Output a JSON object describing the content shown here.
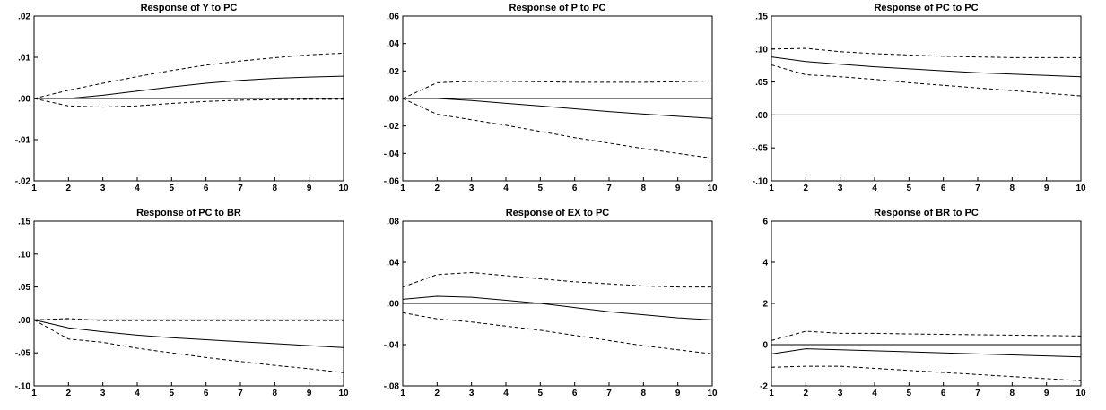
{
  "chart_data": [
    {
      "type": "line",
      "title": "Response of Y to PC",
      "x": [
        1,
        2,
        3,
        4,
        5,
        6,
        7,
        8,
        9,
        10
      ],
      "xticks": [
        "1",
        "2",
        "3",
        "4",
        "5",
        "6",
        "7",
        "8",
        "9",
        "10"
      ],
      "ylim": [
        -0.02,
        0.02
      ],
      "yticks": [
        ".02",
        ".01",
        ".00",
        "-.01",
        "-.02"
      ],
      "ytick_values": [
        0.02,
        0.01,
        0.0,
        -0.01,
        -0.02
      ],
      "zero_line": true,
      "series": [
        {
          "style": "solid",
          "values": [
            0.0,
            0.0,
            0.0008,
            0.0018,
            0.0028,
            0.0037,
            0.0044,
            0.0049,
            0.0052,
            0.0054
          ]
        },
        {
          "style": "dashed",
          "values": [
            0.0,
            0.002,
            0.0037,
            0.0053,
            0.0068,
            0.0081,
            0.0091,
            0.0099,
            0.0106,
            0.011
          ]
        },
        {
          "style": "dashed",
          "values": [
            0.0,
            -0.0018,
            -0.0021,
            -0.0018,
            -0.0012,
            -0.0007,
            -0.0004,
            -0.0003,
            -0.0002,
            -0.0002
          ]
        }
      ]
    },
    {
      "type": "line",
      "title": "Response of P to PC",
      "x": [
        1,
        2,
        3,
        4,
        5,
        6,
        7,
        8,
        9,
        10
      ],
      "xticks": [
        "1",
        "2",
        "3",
        "4",
        "5",
        "6",
        "7",
        "8",
        "9",
        "10"
      ],
      "ylim": [
        -0.06,
        0.06
      ],
      "yticks": [
        ".06",
        ".04",
        ".02",
        ".00",
        "-.02",
        "-.04",
        "-.06"
      ],
      "ytick_values": [
        0.06,
        0.04,
        0.02,
        0.0,
        -0.02,
        -0.04,
        -0.06
      ],
      "zero_line": true,
      "series": [
        {
          "style": "solid",
          "values": [
            0.0,
            0.0,
            -0.0015,
            -0.0035,
            -0.0055,
            -0.0075,
            -0.0095,
            -0.0113,
            -0.013,
            -0.0145
          ]
        },
        {
          "style": "dashed",
          "values": [
            0.0,
            0.0115,
            0.0125,
            0.0125,
            0.0122,
            0.0118,
            0.0118,
            0.0118,
            0.0122,
            0.0128
          ]
        },
        {
          "style": "dashed",
          "values": [
            0.0,
            -0.0115,
            -0.0155,
            -0.0195,
            -0.024,
            -0.0285,
            -0.0325,
            -0.0365,
            -0.04,
            -0.0435
          ]
        }
      ]
    },
    {
      "type": "line",
      "title": "Response of PC to PC",
      "x": [
        1,
        2,
        3,
        4,
        5,
        6,
        7,
        8,
        9,
        10
      ],
      "xticks": [
        "1",
        "2",
        "3",
        "4",
        "5",
        "6",
        "7",
        "8",
        "9",
        "10"
      ],
      "ylim": [
        -0.1,
        0.15
      ],
      "yticks": [
        ".15",
        ".10",
        ".05",
        ".00",
        "-.05",
        "-.10"
      ],
      "ytick_values": [
        0.15,
        0.1,
        0.05,
        0.0,
        -0.05,
        -0.1
      ],
      "zero_line": true,
      "series": [
        {
          "style": "solid",
          "values": [
            0.088,
            0.081,
            0.077,
            0.073,
            0.07,
            0.067,
            0.064,
            0.062,
            0.06,
            0.058
          ]
        },
        {
          "style": "dashed",
          "values": [
            0.1,
            0.101,
            0.096,
            0.093,
            0.091,
            0.089,
            0.088,
            0.087,
            0.087,
            0.087
          ]
        },
        {
          "style": "dashed",
          "values": [
            0.076,
            0.061,
            0.058,
            0.054,
            0.049,
            0.045,
            0.041,
            0.037,
            0.033,
            0.029
          ]
        }
      ]
    },
    {
      "type": "line",
      "title": "Response of PC to BR",
      "x": [
        1,
        2,
        3,
        4,
        5,
        6,
        7,
        8,
        9,
        10
      ],
      "xticks": [
        "1",
        "2",
        "3",
        "4",
        "5",
        "6",
        "7",
        "8",
        "9",
        "10"
      ],
      "ylim": [
        -0.1,
        0.15
      ],
      "yticks": [
        ".15",
        ".10",
        ".05",
        ".00",
        "-.05",
        "-.10"
      ],
      "ytick_values": [
        0.15,
        0.1,
        0.05,
        0.0,
        -0.05,
        -0.1
      ],
      "zero_line": true,
      "series": [
        {
          "style": "solid",
          "values": [
            0.0,
            -0.012,
            -0.018,
            -0.023,
            -0.027,
            -0.03,
            -0.033,
            -0.036,
            -0.039,
            -0.042
          ]
        },
        {
          "style": "dashed",
          "values": [
            0.0,
            0.002,
            -0.001,
            -0.001,
            -0.001,
            -0.001,
            -0.001,
            -0.001,
            -0.001,
            -0.001
          ]
        },
        {
          "style": "dashed",
          "values": [
            0.0,
            -0.029,
            -0.034,
            -0.043,
            -0.05,
            -0.057,
            -0.063,
            -0.069,
            -0.074,
            -0.08
          ]
        }
      ]
    },
    {
      "type": "line",
      "title": "Response of EX to PC",
      "x": [
        1,
        2,
        3,
        4,
        5,
        6,
        7,
        8,
        9,
        10
      ],
      "xticks": [
        "1",
        "2",
        "3",
        "4",
        "5",
        "6",
        "7",
        "8",
        "9",
        "10"
      ],
      "ylim": [
        -0.08,
        0.08
      ],
      "yticks": [
        ".08",
        ".04",
        ".00",
        "-.04",
        "-.08"
      ],
      "ytick_values": [
        0.08,
        0.04,
        0.0,
        -0.04,
        -0.08
      ],
      "zero_line": true,
      "series": [
        {
          "style": "solid",
          "values": [
            0.004,
            0.007,
            0.006,
            0.003,
            0.0,
            -0.004,
            -0.008,
            -0.011,
            -0.014,
            -0.016
          ]
        },
        {
          "style": "dashed",
          "values": [
            0.016,
            0.028,
            0.03,
            0.027,
            0.024,
            0.021,
            0.019,
            0.017,
            0.016,
            0.016
          ]
        },
        {
          "style": "dashed",
          "values": [
            -0.009,
            -0.015,
            -0.018,
            -0.022,
            -0.026,
            -0.031,
            -0.036,
            -0.041,
            -0.045,
            -0.049
          ]
        }
      ]
    },
    {
      "type": "line",
      "title": "Response of BR to PC",
      "x": [
        1,
        2,
        3,
        4,
        5,
        6,
        7,
        8,
        9,
        10
      ],
      "xticks": [
        "1",
        "2",
        "3",
        "4",
        "5",
        "6",
        "7",
        "8",
        "9",
        "10"
      ],
      "ylim": [
        -2,
        6
      ],
      "yticks": [
        "6",
        "4",
        "2",
        "0",
        "-2"
      ],
      "ytick_values": [
        6,
        4,
        2,
        0,
        -2
      ],
      "zero_line": true,
      "series": [
        {
          "style": "solid",
          "values": [
            -0.45,
            -0.2,
            -0.25,
            -0.3,
            -0.35,
            -0.4,
            -0.45,
            -0.5,
            -0.55,
            -0.6
          ]
        },
        {
          "style": "dashed",
          "values": [
            0.2,
            0.65,
            0.55,
            0.55,
            0.52,
            0.5,
            0.48,
            0.46,
            0.44,
            0.42
          ]
        },
        {
          "style": "dashed",
          "values": [
            -1.1,
            -1.05,
            -1.05,
            -1.15,
            -1.25,
            -1.35,
            -1.45,
            -1.55,
            -1.65,
            -1.75
          ]
        }
      ]
    }
  ]
}
